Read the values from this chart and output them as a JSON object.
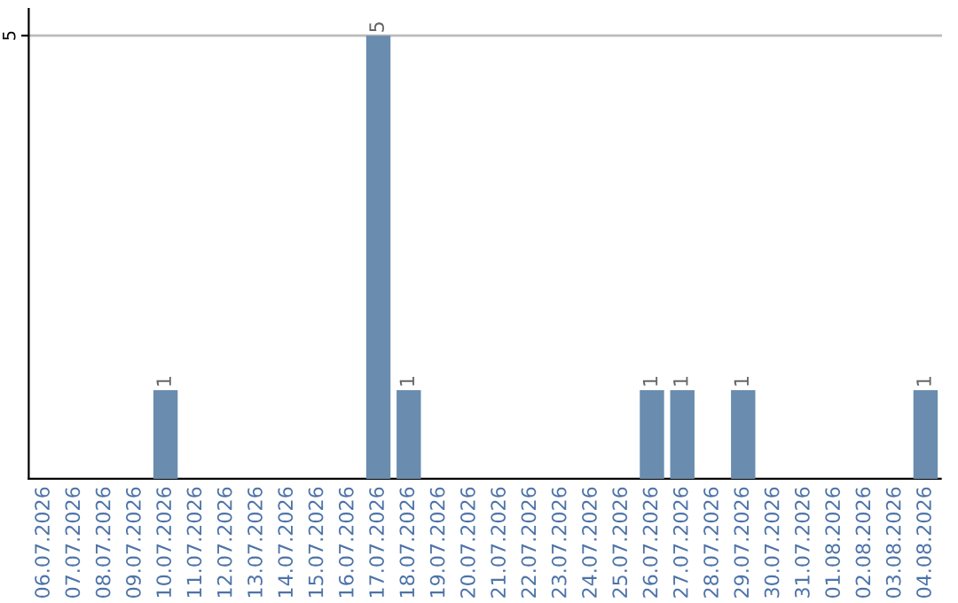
{
  "chart_data": {
    "type": "bar",
    "categories": [
      "06.07.2026",
      "07.07.2026",
      "08.07.2026",
      "09.07.2026",
      "10.07.2026",
      "11.07.2026",
      "12.07.2026",
      "13.07.2026",
      "14.07.2026",
      "15.07.2026",
      "16.07.2026",
      "17.07.2026",
      "18.07.2026",
      "19.07.2026",
      "20.07.2026",
      "21.07.2026",
      "22.07.2026",
      "23.07.2026",
      "24.07.2026",
      "25.07.2026",
      "26.07.2026",
      "27.07.2026",
      "28.07.2026",
      "29.07.2026",
      "30.07.2026",
      "31.07.2026",
      "01.08.2026",
      "02.08.2026",
      "03.08.2026",
      "04.08.2026"
    ],
    "values": [
      0,
      0,
      0,
      0,
      1,
      0,
      0,
      0,
      0,
      0,
      0,
      5,
      1,
      0,
      0,
      0,
      0,
      0,
      0,
      0,
      1,
      1,
      0,
      1,
      0,
      0,
      0,
      0,
      0,
      1
    ],
    "color": "#6a8caf",
    "value_labels": [
      null,
      null,
      null,
      null,
      "1",
      null,
      null,
      null,
      null,
      null,
      null,
      "5",
      "1",
      null,
      null,
      null,
      null,
      null,
      null,
      null,
      "1",
      "1",
      null,
      "1",
      null,
      null,
      null,
      null,
      null,
      "1"
    ],
    "ylim": [
      0,
      5.3
    ],
    "yticks": [
      5
    ],
    "grid": "y",
    "legend": false
  }
}
